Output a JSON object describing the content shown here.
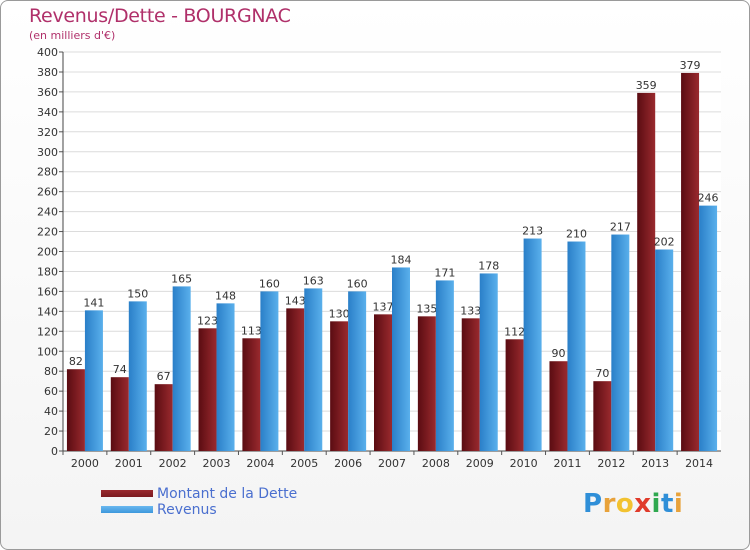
{
  "chart_data": {
    "type": "bar",
    "title": "Revenus/Dette - BOURGNAC",
    "subtitle": "(en milliers d'€)",
    "categories": [
      "2000",
      "2001",
      "2002",
      "2003",
      "2004",
      "2005",
      "2006",
      "2007",
      "2008",
      "2009",
      "2010",
      "2011",
      "2012",
      "2013",
      "2014"
    ],
    "series": [
      {
        "name": "Montant de la Dette",
        "color": "#7b1a1f",
        "values": [
          82,
          74,
          67,
          123,
          113,
          143,
          130,
          137,
          135,
          133,
          112,
          90,
          70,
          359,
          379
        ]
      },
      {
        "name": "Revenus",
        "color": "#3d98dc",
        "values": [
          141,
          150,
          165,
          148,
          160,
          163,
          160,
          184,
          171,
          178,
          213,
          210,
          217,
          202,
          246
        ]
      }
    ],
    "ylim": [
      0,
      400
    ],
    "yticks": [
      0,
      20,
      40,
      60,
      80,
      100,
      120,
      140,
      160,
      180,
      200,
      220,
      240,
      260,
      280,
      300,
      320,
      340,
      360,
      380,
      400
    ],
    "grid": true,
    "legend_position": "bottom-left"
  },
  "logo": {
    "letters": [
      "P",
      "r",
      "o",
      "x",
      "i",
      "t",
      "i"
    ],
    "colors": [
      "#2f8fd8",
      "#e8a23a",
      "#f2c230",
      "#e03a2a",
      "#2fa84f",
      "#2f8fd8",
      "#e8a23a"
    ]
  }
}
